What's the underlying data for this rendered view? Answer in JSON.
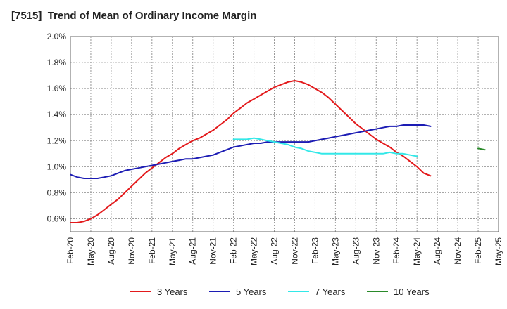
{
  "chart_data": {
    "type": "line",
    "title": "[7515]  Trend of Mean of Ordinary Income Margin",
    "xlabel": "",
    "ylabel": "",
    "x_ticks": [
      "Feb-20",
      "May-20",
      "Aug-20",
      "Nov-20",
      "Feb-21",
      "May-21",
      "Aug-21",
      "Nov-21",
      "Feb-22",
      "May-22",
      "Aug-22",
      "Nov-22",
      "Feb-23",
      "May-23",
      "Aug-23",
      "Nov-23",
      "Feb-24",
      "May-24",
      "Aug-24",
      "Nov-24",
      "Feb-25",
      "May-25"
    ],
    "y_ticks": [
      "0.6%",
      "0.8%",
      "1.0%",
      "1.2%",
      "1.4%",
      "1.6%",
      "1.8%",
      "2.0%"
    ],
    "ylim": [
      0.5,
      2.0
    ],
    "grid": true,
    "legend_position": "bottom",
    "series": [
      {
        "name": "3 Years",
        "color": "#e31a1c",
        "start_index": 0,
        "values": [
          0.57,
          0.57,
          0.58,
          0.6,
          0.63,
          0.67,
          0.71,
          0.75,
          0.8,
          0.85,
          0.9,
          0.95,
          0.99,
          1.03,
          1.07,
          1.1,
          1.14,
          1.17,
          1.2,
          1.22,
          1.25,
          1.28,
          1.32,
          1.36,
          1.41,
          1.45,
          1.49,
          1.52,
          1.55,
          1.58,
          1.61,
          1.63,
          1.65,
          1.66,
          1.65,
          1.63,
          1.6,
          1.57,
          1.53,
          1.48,
          1.43,
          1.38,
          1.33,
          1.29,
          1.25,
          1.21,
          1.18,
          1.15,
          1.11,
          1.08,
          1.04,
          1.0,
          0.95,
          0.93
        ]
      },
      {
        "name": "5 Years",
        "color": "#1c1cb4",
        "start_index": 0,
        "values": [
          0.94,
          0.92,
          0.91,
          0.91,
          0.91,
          0.92,
          0.93,
          0.95,
          0.97,
          0.98,
          0.99,
          1.0,
          1.01,
          1.02,
          1.03,
          1.04,
          1.05,
          1.06,
          1.06,
          1.07,
          1.08,
          1.09,
          1.11,
          1.13,
          1.15,
          1.16,
          1.17,
          1.18,
          1.18,
          1.19,
          1.19,
          1.19,
          1.19,
          1.19,
          1.19,
          1.19,
          1.2,
          1.21,
          1.22,
          1.23,
          1.24,
          1.25,
          1.26,
          1.27,
          1.28,
          1.29,
          1.3,
          1.31,
          1.31,
          1.32,
          1.32,
          1.32,
          1.32,
          1.31
        ]
      },
      {
        "name": "7 Years",
        "color": "#33e8e8",
        "start_index": 24,
        "values": [
          1.21,
          1.21,
          1.21,
          1.22,
          1.21,
          1.2,
          1.19,
          1.18,
          1.17,
          1.15,
          1.14,
          1.12,
          1.11,
          1.1,
          1.1,
          1.1,
          1.1,
          1.1,
          1.1,
          1.1,
          1.1,
          1.1,
          1.1,
          1.11,
          1.1,
          1.1,
          1.09,
          1.08
        ]
      },
      {
        "name": "10 Years",
        "color": "#2a8a2a",
        "start_index": 60,
        "values": [
          1.14,
          1.13
        ]
      }
    ]
  }
}
